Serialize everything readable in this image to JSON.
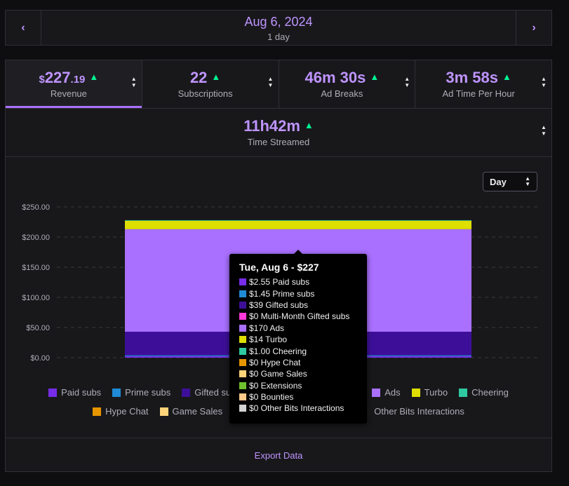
{
  "date_nav": {
    "title": "Aug 6, 2024",
    "subtitle": "1 day",
    "prev_icon": "chevron-left-icon",
    "next_icon": "chevron-right-icon"
  },
  "stats": [
    {
      "currency": "$",
      "value": "227",
      "decimals": ".19",
      "label": "Revenue",
      "active": true
    },
    {
      "value": "22",
      "label": "Subscriptions"
    },
    {
      "value": "46m 30s",
      "label": "Ad Breaks"
    },
    {
      "value": "3m 58s",
      "label": "Ad Time Per Hour"
    }
  ],
  "time_streamed": {
    "value": "11h42m",
    "label": "Time Streamed"
  },
  "period_select": {
    "value": "Day"
  },
  "chart_data": {
    "type": "bar",
    "stacked": true,
    "categories": [
      "Aug 6"
    ],
    "y_ticks": [
      "$250.00",
      "$200.00",
      "$150.00",
      "$100.00",
      "$50.00",
      "$0.00"
    ],
    "ylim": [
      0,
      250
    ],
    "grid": true,
    "series": [
      {
        "name": "Paid subs",
        "values": [
          2.55
        ],
        "color": "#772ce8"
      },
      {
        "name": "Prime subs",
        "values": [
          1.45
        ],
        "color": "#1f8ad6"
      },
      {
        "name": "Gifted subs",
        "values": [
          39
        ],
        "color": "#3d0f99"
      },
      {
        "name": "Multi-Month Gifted subs",
        "values": [
          0
        ],
        "color": "#ff38db"
      },
      {
        "name": "Ads",
        "values": [
          170
        ],
        "color": "#a970ff"
      },
      {
        "name": "Turbo",
        "values": [
          14
        ],
        "color": "#dede00"
      },
      {
        "name": "Cheering",
        "values": [
          1.0
        ],
        "color": "#2fc9a1"
      },
      {
        "name": "Hype Chat",
        "values": [
          0
        ],
        "color": "#e69500"
      },
      {
        "name": "Game Sales",
        "values": [
          0
        ],
        "color": "#ffd37a"
      },
      {
        "name": "Extensions",
        "values": [
          0
        ],
        "color": "#6fc12d"
      },
      {
        "name": "Bounties",
        "values": [
          0
        ],
        "color": "#ffc98a"
      },
      {
        "name": "Other Bits Interactions",
        "values": [
          0
        ],
        "color": "#d3d3d3"
      }
    ]
  },
  "legend": {
    "row1": [
      {
        "label": "Paid subs",
        "color": "#772ce8"
      },
      {
        "label": "Prime subs",
        "color": "#1f8ad6"
      },
      {
        "label": "Gifted subs",
        "color": "#3d0f99"
      },
      {
        "label": "Multi-Month Gifted subs",
        "color": "#ff38db"
      },
      {
        "label": "Ads",
        "color": "#a970ff"
      },
      {
        "label": "Turbo",
        "color": "#dede00"
      },
      {
        "label": "Cheering",
        "color": "#2fc9a1"
      }
    ],
    "row2": [
      {
        "label": "Hype Chat",
        "color": "#e69500"
      },
      {
        "label": "Game Sales",
        "color": "#ffd37a"
      },
      {
        "label": "Extensions",
        "color": "#6fc12d"
      },
      {
        "label": "Bounties",
        "color": "#ffc98a"
      },
      {
        "label": "Other Bits Interactions",
        "color": "#1a1a1a"
      }
    ]
  },
  "tooltip": {
    "title": "Tue, Aug 6 - $227",
    "rows": [
      {
        "text": "$2.55 Paid subs",
        "color": "#772ce8"
      },
      {
        "text": "$1.45 Prime subs",
        "color": "#1f8ad6"
      },
      {
        "text": "$39 Gifted subs",
        "color": "#3d0f99"
      },
      {
        "text": "$0 Multi-Month Gifted subs",
        "color": "#ff38db"
      },
      {
        "text": "$170 Ads",
        "color": "#a970ff"
      },
      {
        "text": "$14 Turbo",
        "color": "#dede00"
      },
      {
        "text": "$1.00 Cheering",
        "color": "#2fc9a1"
      },
      {
        "text": "$0 Hype Chat",
        "color": "#e69500"
      },
      {
        "text": "$0 Game Sales",
        "color": "#ffd37a"
      },
      {
        "text": "$0 Extensions",
        "color": "#6fc12d"
      },
      {
        "text": "$0 Bounties",
        "color": "#ffc98a"
      },
      {
        "text": "$0 Other Bits Interactions",
        "color": "#d3d3d3"
      }
    ]
  },
  "footer": {
    "export_label": "Export Data"
  }
}
